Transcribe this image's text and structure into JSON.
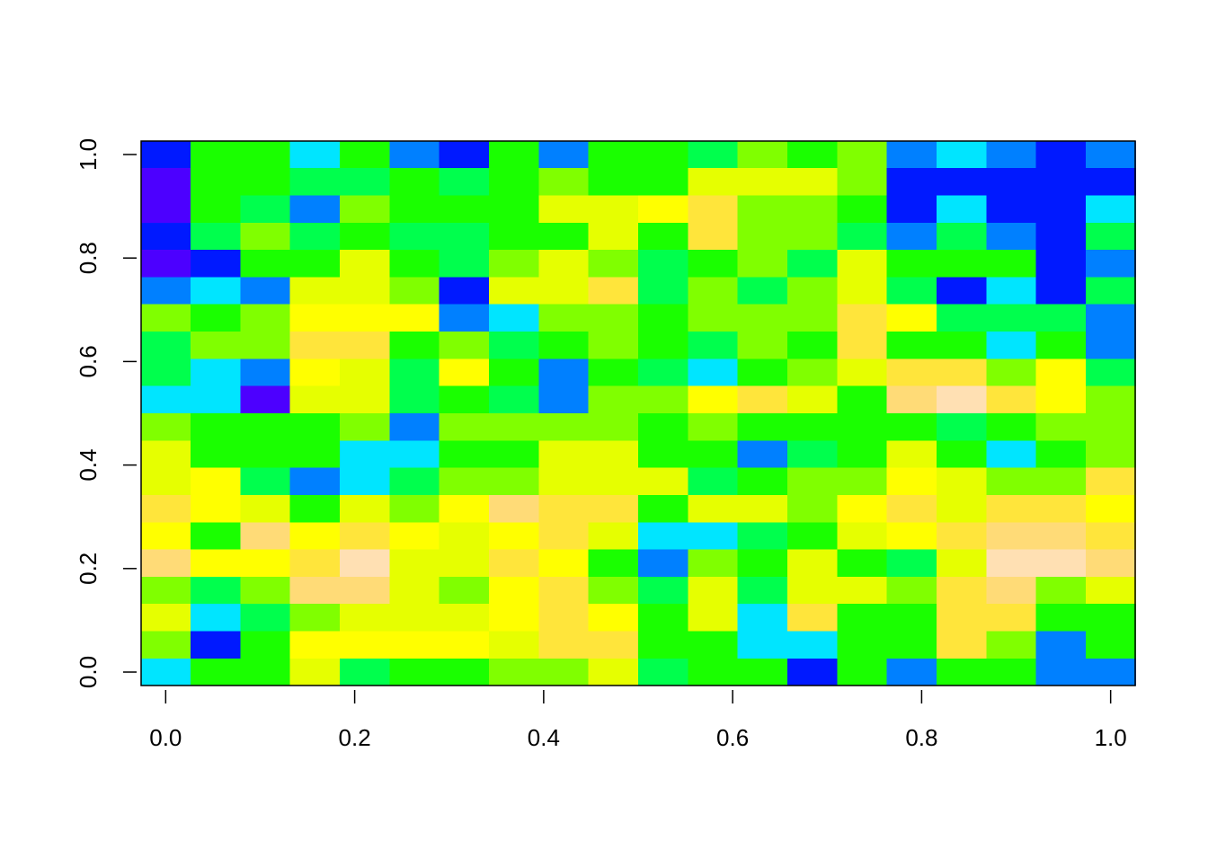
{
  "chart_data": {
    "type": "heatmap",
    "xlim": [
      -0.026,
      1.026
    ],
    "ylim": [
      -0.026,
      1.026
    ],
    "xticks": [
      {
        "value": 0,
        "label": "0.0"
      },
      0.2,
      0.4,
      0.6,
      0.8,
      {
        "value": 1,
        "label": "1.0"
      }
    ],
    "yticks": [
      {
        "value": 0,
        "label": "0.0"
      },
      0.2,
      0.4,
      0.6,
      0.8,
      {
        "value": 1,
        "label": "1.0"
      }
    ],
    "zlim": [
      0,
      11
    ],
    "colors": [
      "#4C00FF",
      "#0019FF",
      "#0080FF",
      "#00E5FF",
      "#00FF4D",
      "#1AFF00",
      "#80FF00",
      "#E6FF00",
      "#FFFF00",
      "#FFE53B",
      "#FFDB77",
      "#FFE0B3"
    ],
    "z": [
      [
        1,
        5,
        5,
        3,
        5,
        2,
        1,
        5,
        2,
        5,
        5,
        4,
        6,
        5,
        6,
        2,
        3,
        2,
        1,
        2
      ],
      [
        0,
        5,
        5,
        4,
        4,
        5,
        4,
        5,
        6,
        5,
        5,
        7,
        7,
        7,
        6,
        1,
        1,
        1,
        1,
        1
      ],
      [
        0,
        5,
        4,
        2,
        6,
        5,
        5,
        5,
        7,
        7,
        8,
        9,
        6,
        6,
        5,
        1,
        3,
        1,
        1,
        3
      ],
      [
        1,
        4,
        6,
        4,
        5,
        4,
        4,
        5,
        5,
        7,
        5,
        9,
        6,
        6,
        4,
        2,
        4,
        2,
        1,
        4
      ],
      [
        0,
        1,
        5,
        5,
        7,
        5,
        4,
        6,
        7,
        6,
        4,
        5,
        6,
        4,
        7,
        5,
        5,
        5,
        1,
        2
      ],
      [
        2,
        3,
        2,
        7,
        7,
        6,
        1,
        7,
        7,
        9,
        4,
        6,
        4,
        6,
        7,
        4,
        1,
        3,
        1,
        4
      ],
      [
        6,
        5,
        6,
        8,
        8,
        8,
        2,
        3,
        6,
        6,
        5,
        6,
        6,
        6,
        9,
        8,
        4,
        4,
        4,
        2
      ],
      [
        4,
        6,
        6,
        9,
        9,
        5,
        6,
        4,
        5,
        6,
        5,
        4,
        6,
        5,
        9,
        5,
        5,
        3,
        5,
        2
      ],
      [
        4,
        3,
        2,
        8,
        7,
        4,
        8,
        5,
        2,
        5,
        4,
        3,
        5,
        6,
        7,
        9,
        9,
        6,
        8,
        4
      ],
      [
        3,
        3,
        0,
        7,
        7,
        4,
        5,
        4,
        2,
        6,
        6,
        8,
        9,
        7,
        5,
        10,
        11,
        9,
        8,
        6
      ],
      [
        6,
        5,
        5,
        5,
        6,
        2,
        6,
        6,
        6,
        6,
        5,
        6,
        5,
        5,
        5,
        5,
        4,
        5,
        6,
        6
      ],
      [
        7,
        5,
        5,
        5,
        3,
        3,
        5,
        5,
        7,
        7,
        5,
        5,
        2,
        4,
        5,
        7,
        5,
        3,
        5,
        6
      ],
      [
        7,
        8,
        4,
        2,
        3,
        4,
        6,
        6,
        7,
        7,
        7,
        4,
        5,
        6,
        6,
        8,
        7,
        6,
        6,
        9
      ],
      [
        9,
        8,
        7,
        5,
        7,
        6,
        8,
        10,
        9,
        9,
        5,
        7,
        7,
        6,
        8,
        9,
        7,
        9,
        9,
        8
      ],
      [
        8,
        5,
        10,
        8,
        9,
        8,
        7,
        8,
        9,
        7,
        3,
        3,
        4,
        5,
        7,
        8,
        9,
        10,
        10,
        9
      ],
      [
        10,
        8,
        8,
        9,
        11,
        7,
        7,
        9,
        8,
        5,
        2,
        6,
        5,
        7,
        5,
        4,
        7,
        11,
        11,
        10
      ],
      [
        6,
        4,
        6,
        10,
        10,
        7,
        6,
        8,
        9,
        6,
        4,
        7,
        4,
        7,
        7,
        6,
        9,
        10,
        6,
        7
      ],
      [
        7,
        3,
        4,
        6,
        7,
        7,
        7,
        8,
        9,
        8,
        5,
        7,
        3,
        9,
        5,
        5,
        9,
        9,
        5,
        5
      ],
      [
        6,
        1,
        5,
        8,
        8,
        8,
        8,
        7,
        9,
        9,
        5,
        5,
        3,
        3,
        5,
        5,
        9,
        6,
        2,
        5
      ],
      [
        3,
        5,
        5,
        7,
        4,
        5,
        5,
        6,
        6,
        7,
        4,
        5,
        5,
        1,
        5,
        2,
        5,
        5,
        2,
        2
      ]
    ]
  }
}
